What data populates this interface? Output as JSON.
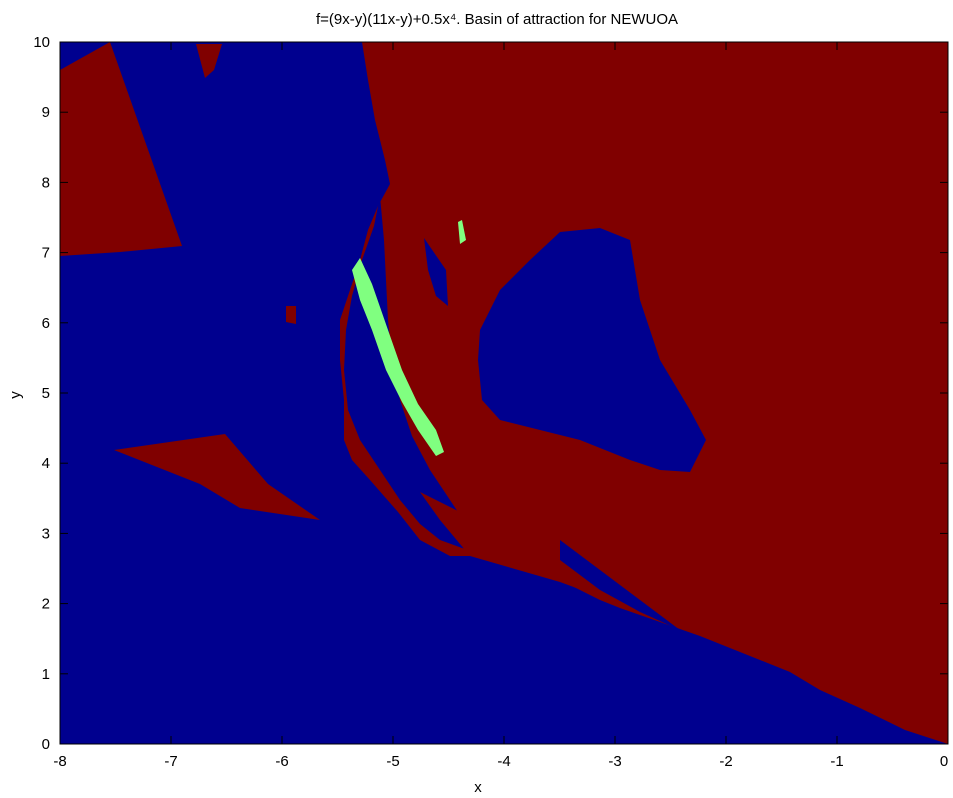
{
  "chart_data": {
    "type": "heatmap",
    "title": "f=(9x-y)(11x-y)+0.5x⁴. Basin of attraction for NEWUOA",
    "xlabel": "x",
    "ylabel": "y",
    "xlim": [
      -8,
      0
    ],
    "ylim": [
      0,
      10
    ],
    "x_ticks": [
      -8,
      -7,
      -6,
      -5,
      -4,
      -3,
      -2,
      -1,
      0
    ],
    "y_ticks": [
      0,
      1,
      2,
      3,
      4,
      5,
      6,
      7,
      8,
      9,
      10
    ],
    "x_tick_labels": [
      "-8",
      "-7",
      "-6",
      "-5",
      "-4",
      "-3",
      "-2",
      "-1",
      "0"
    ],
    "y_tick_labels": [
      "0",
      "1",
      "2",
      "3",
      "4",
      "5",
      "6",
      "7",
      "8",
      "9",
      "10"
    ],
    "grid": false,
    "colors": {
      "basin_blue": "#00008f",
      "basin_red": "#800000",
      "basin_green": "#80ff80"
    }
  }
}
